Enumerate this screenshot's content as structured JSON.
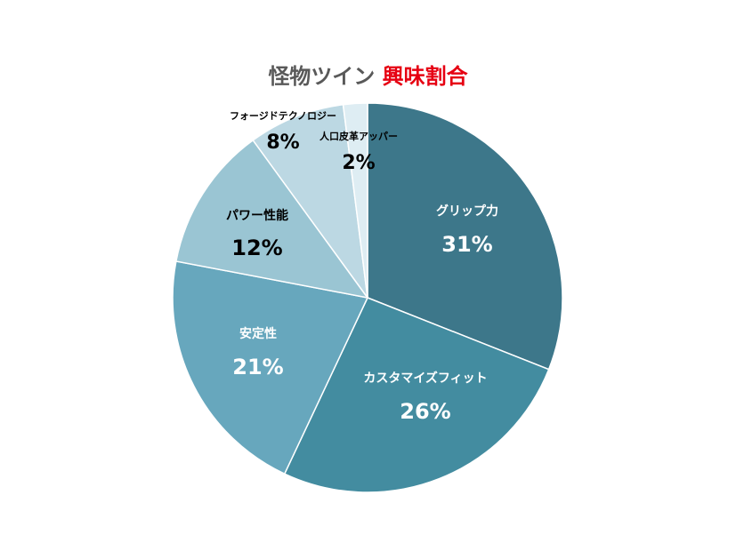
{
  "title": {
    "part1": "怪物ツイン",
    "part2": "興味割合",
    "part2_color": "#e60012"
  },
  "chart_data": {
    "type": "pie",
    "title": "怪物ツイン 興味割合",
    "start": "12 o'clock, clockwise",
    "slices": [
      {
        "label": "グリップ力",
        "value": 31,
        "value_label": "31%",
        "color": "#3d778a"
      },
      {
        "label": "カスタマイズフィット",
        "value": 26,
        "value_label": "26%",
        "color": "#438ca0"
      },
      {
        "label": "安定性",
        "value": 21,
        "value_label": "21%",
        "color": "#67a7bd"
      },
      {
        "label": "パワー性能",
        "value": 12,
        "value_label": "12%",
        "color": "#9ac5d3"
      },
      {
        "label": "フォージドテクノロジー",
        "value": 8,
        "value_label": "8%",
        "color": "#bcd8e3"
      },
      {
        "label": "人口皮革アッパー",
        "value": 2,
        "value_label": "2%",
        "color": "#deedf3"
      }
    ]
  }
}
